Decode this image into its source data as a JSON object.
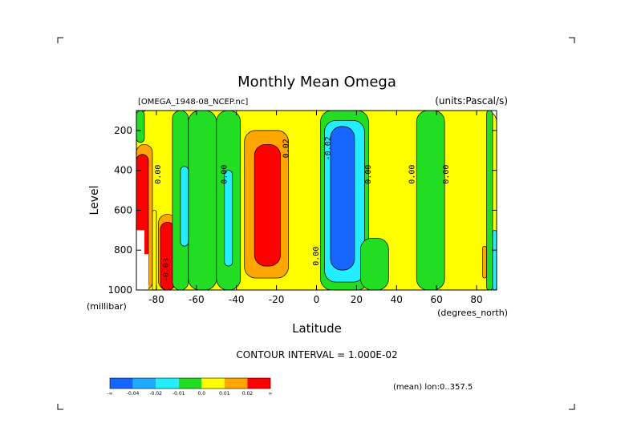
{
  "chart_data": {
    "type": "heatmap",
    "title": "Monthly Mean Omega",
    "subtitle_left": "[OMEGA_1948-08_NCEP.nc]",
    "subtitle_right": "(units:Pascal/s)",
    "xlabel": "Latitude",
    "xunit": "(degrees_north)",
    "ylabel": "Level",
    "yunit": "(millibar)",
    "xlim": [
      -90,
      90
    ],
    "ylim": [
      1000,
      100
    ],
    "x_ticks": [
      -80,
      -60,
      -40,
      -20,
      0,
      20,
      40,
      60,
      80
    ],
    "x_tick_labels": [
      "-80",
      "-60",
      "-40",
      "-20",
      "0",
      "20",
      "40",
      "60",
      "80"
    ],
    "y_ticks": [
      200,
      400,
      600,
      800,
      1000
    ],
    "y_tick_labels": [
      "200",
      "400",
      "600",
      "800",
      "1000"
    ],
    "contour_interval_text": "CONTOUR INTERVAL = 1.000E-02",
    "mean_text": "(mean) lon:0..357.5",
    "colorbar": {
      "colors": [
        "#1466ff",
        "#1eaaff",
        "#22eeff",
        "#22dd22",
        "#ffff00",
        "#ffa500",
        "#ff0000"
      ],
      "labels": [
        "-∞",
        "-0.04",
        "-0.02",
        "-0.01",
        "0.0",
        "0.01",
        "0.02",
        "∞"
      ]
    },
    "regions": [
      {
        "level": "yellow",
        "lat": [
          -90,
          90
        ],
        "p": [
          100,
          1000
        ]
      },
      {
        "level": "green",
        "lat": [
          -90,
          -86
        ],
        "p": [
          100,
          260
        ]
      },
      {
        "level": "orange",
        "lat": [
          -90,
          -82
        ],
        "p": [
          270,
          1000
        ]
      },
      {
        "level": "red",
        "lat": [
          -90,
          -84
        ],
        "p": [
          320,
          1000
        ]
      },
      {
        "level": "yellow",
        "lat": [
          -82,
          -80
        ],
        "p": [
          600,
          1000
        ]
      },
      {
        "level": "orange",
        "lat": [
          -79,
          -70
        ],
        "p": [
          620,
          1000
        ]
      },
      {
        "level": "red",
        "lat": [
          -78,
          -71
        ],
        "p": [
          660,
          1000
        ]
      },
      {
        "level": "green",
        "lat": [
          -72,
          -64
        ],
        "p": [
          100,
          1000
        ]
      },
      {
        "level": "green",
        "lat": [
          -64,
          -50
        ],
        "p": [
          100,
          1000
        ]
      },
      {
        "level": "cyan",
        "lat": [
          -68,
          -64
        ],
        "p": [
          380,
          780
        ]
      },
      {
        "level": "green",
        "lat": [
          -50,
          -38
        ],
        "p": [
          100,
          1000
        ]
      },
      {
        "level": "cyan",
        "lat": [
          -46,
          -42
        ],
        "p": [
          400,
          880
        ]
      },
      {
        "level": "orange",
        "lat": [
          -36,
          -14
        ],
        "p": [
          200,
          940
        ]
      },
      {
        "level": "red",
        "lat": [
          -31,
          -18
        ],
        "p": [
          270,
          880
        ]
      },
      {
        "level": "green",
        "lat": [
          2,
          26
        ],
        "p": [
          100,
          1000
        ]
      },
      {
        "level": "cyan",
        "lat": [
          4,
          24
        ],
        "p": [
          150,
          960
        ]
      },
      {
        "level": "blue",
        "lat": [
          7,
          19
        ],
        "p": [
          180,
          900
        ]
      },
      {
        "level": "green",
        "lat": [
          22,
          36
        ],
        "p": [
          740,
          1000
        ]
      },
      {
        "level": "green",
        "lat": [
          50,
          64
        ],
        "p": [
          100,
          1000
        ]
      },
      {
        "level": "orange",
        "lat": [
          83,
          85
        ],
        "p": [
          780,
          940
        ]
      },
      {
        "level": "green",
        "lat": [
          85,
          88
        ],
        "p": [
          100,
          1000
        ]
      },
      {
        "level": "cyan",
        "lat": [
          88,
          90
        ],
        "p": [
          700,
          1000
        ]
      }
    ],
    "missing": [
      {
        "lat": [
          -90,
          -86
        ],
        "p": [
          700,
          1000
        ]
      },
      {
        "lat": [
          -86,
          -84
        ],
        "p": [
          820,
          1000
        ]
      }
    ],
    "contour_labels": [
      {
        "text": "0.00",
        "lat": -78,
        "p": 420
      },
      {
        "text": "0.00",
        "lat": -45,
        "p": 420
      },
      {
        "text": "0.02",
        "lat": -14,
        "p": 290
      },
      {
        "text": "-0.02",
        "lat": 7,
        "p": 290
      },
      {
        "text": "0.00",
        "lat": 27,
        "p": 420
      },
      {
        "text": "0.00",
        "lat": 49,
        "p": 420
      },
      {
        "text": "0.00",
        "lat": 66,
        "p": 420
      },
      {
        "text": "0.00",
        "lat": 1,
        "p": 830
      },
      {
        "text": "-0.03",
        "lat": -74,
        "p": 900
      }
    ]
  }
}
